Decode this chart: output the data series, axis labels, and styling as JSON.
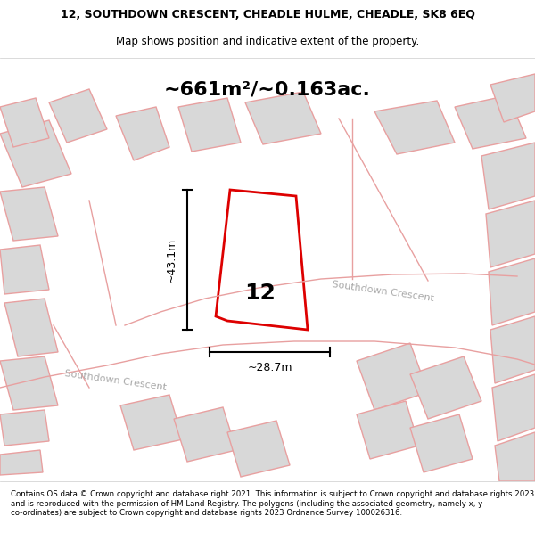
{
  "title_line1": "12, SOUTHDOWN CRESCENT, CHEADLE HULME, CHEADLE, SK8 6EQ",
  "title_line2": "Map shows position and indicative extent of the property.",
  "area_label": "~661m²/~0.163ac.",
  "dim_vertical": "~43.1m",
  "dim_horizontal": "~28.7m",
  "number_label": "12",
  "road_label1": "Southdown Crescent",
  "road_label2": "Southdown Crescent",
  "footer_text": "Contains OS data © Crown copyright and database right 2021. This information is subject to Crown copyright and database rights 2023 and is reproduced with the permission of HM Land Registry. The polygons (including the associated geometry, namely x, y co-ordinates) are subject to Crown copyright and database rights 2023 Ordnance Survey 100026316.",
  "bg_color": "#f5f5f5",
  "map_bg": "#f0f0f0",
  "title_bg": "#ffffff",
  "footer_bg": "#ffffff",
  "red_outline": "#dd0000",
  "light_gray": "#d8d8d8",
  "pink_line": "#e8a0a0",
  "road_fill": "#cccccc"
}
